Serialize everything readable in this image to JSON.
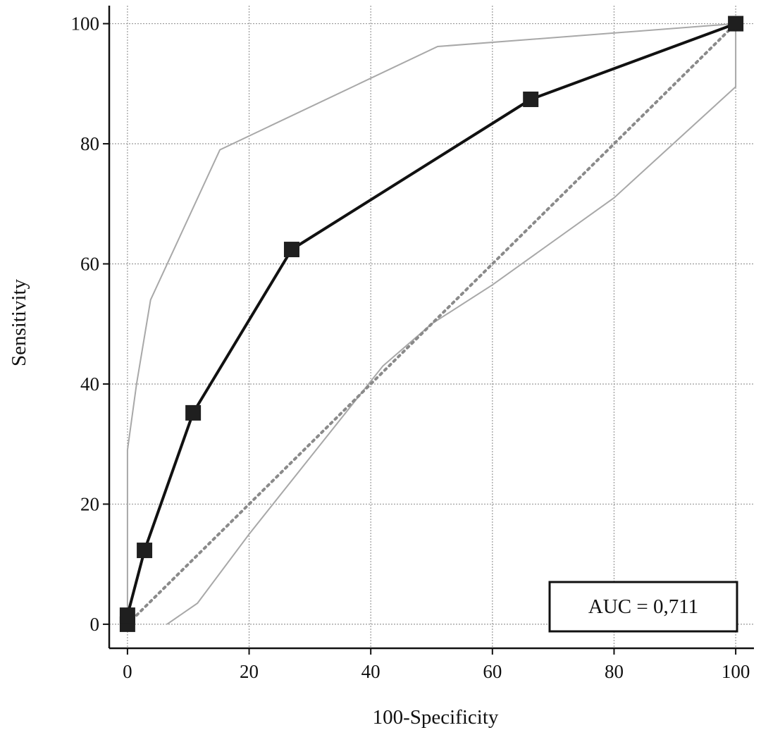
{
  "chart_data": {
    "type": "line",
    "title": "",
    "xlabel": "100-Specificity",
    "ylabel": "Sensitivity",
    "xlim": [
      -3,
      103
    ],
    "ylim": [
      -4,
      103
    ],
    "x_ticks": [
      0,
      20,
      40,
      60,
      80,
      100
    ],
    "y_ticks": [
      0,
      20,
      40,
      60,
      80,
      100
    ],
    "grid": true,
    "annotation": "AUC = 0,711",
    "annotation_position": "bottom-right",
    "series": [
      {
        "role": "roc",
        "color": "#111111",
        "markers": "square",
        "x": [
          0,
          0,
          2.8,
          10.8,
          27.0,
          66.3,
          100
        ],
        "y": [
          0,
          1.5,
          12.3,
          35.2,
          62.4,
          87.4,
          100
        ]
      },
      {
        "role": "upper-ci",
        "color": "#a8a8a8",
        "markers": "none",
        "x": [
          0,
          0,
          1.5,
          3.8,
          15.2,
          51.0,
          100,
          100
        ],
        "y": [
          0,
          29.0,
          40.0,
          54.0,
          79.0,
          96.2,
          100,
          100
        ]
      },
      {
        "role": "lower-ci",
        "color": "#a8a8a8",
        "markers": "none",
        "x": [
          6.5,
          11.5,
          20.0,
          42.0,
          50.0,
          60.0,
          80.0,
          100,
          100
        ],
        "y": [
          0,
          3.5,
          15.0,
          43.0,
          50.0,
          56.5,
          71.0,
          89.5,
          100
        ]
      },
      {
        "role": "reference-diagonal",
        "color": "#8a8a8a",
        "markers": "none",
        "x": [
          0,
          100
        ],
        "y": [
          0,
          100
        ]
      }
    ]
  }
}
